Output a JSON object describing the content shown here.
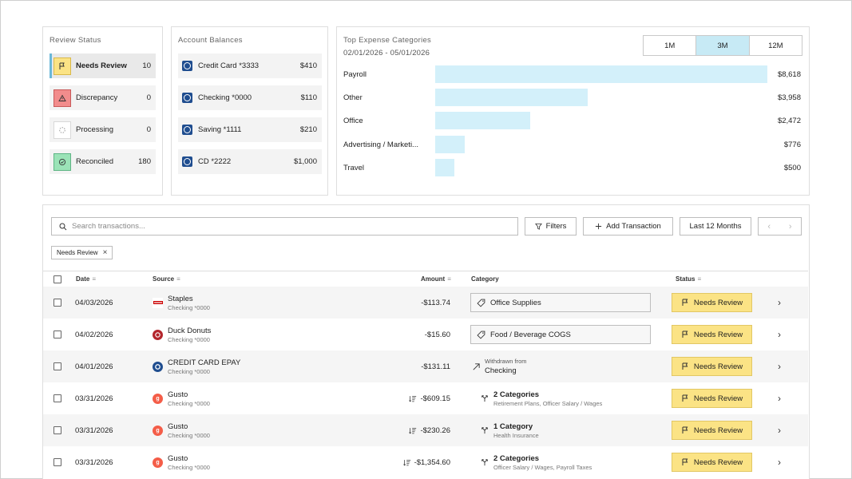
{
  "review_status": {
    "title": "Review Status",
    "items": [
      {
        "label": "Needs Review",
        "count": "10"
      },
      {
        "label": "Discrepancy",
        "count": "0"
      },
      {
        "label": "Processing",
        "count": "0"
      },
      {
        "label": "Reconciled",
        "count": "180"
      }
    ]
  },
  "balances": {
    "title": "Account Balances",
    "items": [
      {
        "label": "Credit Card  *3333",
        "amount": "$410"
      },
      {
        "label": "Checking  *0000",
        "amount": "$110"
      },
      {
        "label": "Saving  *1111",
        "amount": "$210"
      },
      {
        "label": "CD  *2222",
        "amount": "$1,000"
      }
    ]
  },
  "expenses": {
    "title": "Top Expense Categories",
    "date_range": "02/01/2026 - 05/01/2026",
    "ranges": [
      "1M",
      "3M",
      "12M"
    ],
    "active_range": "3M",
    "accent": "#d3f0fa"
  },
  "chart_data": {
    "type": "bar",
    "title": "Top Expense Categories",
    "categories": [
      "Payroll",
      "Other",
      "Office",
      "Advertising / Marketi...",
      "Travel"
    ],
    "values": [
      8618,
      3958,
      2472,
      776,
      500
    ],
    "value_labels": [
      "$8,618",
      "$3,958",
      "$2,472",
      "$776",
      "$500"
    ],
    "orientation": "horizontal"
  },
  "toolbar": {
    "search_placeholder": "Search transactions...",
    "filters_label": "Filters",
    "add_label": "Add Transaction",
    "period_label": "Last 12 Months",
    "active_filter": "Needs Review"
  },
  "table": {
    "headers": {
      "date": "Date",
      "source": "Source",
      "amount": "Amount",
      "category": "Category",
      "status": "Status"
    },
    "rows": [
      {
        "date": "04/03/2026",
        "source": "Staples",
        "account": "Checking *0000",
        "logo": "staples",
        "amount": "-$113.74",
        "split": false,
        "cat_type": "tag",
        "category": "Office Supplies",
        "cat_sub": "",
        "status": "Needs Review"
      },
      {
        "date": "04/02/2026",
        "source": "Duck Donuts",
        "account": "Checking *0000",
        "logo": "donut",
        "amount": "-$15.60",
        "split": false,
        "cat_type": "tag",
        "category": "Food / Beverage COGS",
        "cat_sub": "",
        "status": "Needs Review"
      },
      {
        "date": "04/01/2026",
        "source": "CREDIT CARD EPAY",
        "account": "Checking *0000",
        "logo": "bank",
        "amount": "-$131.11",
        "split": false,
        "cat_type": "transfer",
        "category": "Withdrawn from",
        "cat_sub": "Checking",
        "status": "Needs Review"
      },
      {
        "date": "03/31/2026",
        "source": "Gusto",
        "account": "Checking *0000",
        "logo": "gusto",
        "amount": "-$609.15",
        "split": true,
        "cat_type": "split",
        "category": "2 Categories",
        "cat_sub": "Retirement Plans, Officer Salary / Wages",
        "status": "Needs Review"
      },
      {
        "date": "03/31/2026",
        "source": "Gusto",
        "account": "Checking *0000",
        "logo": "gusto",
        "amount": "-$230.26",
        "split": true,
        "cat_type": "split",
        "category": "1 Category",
        "cat_sub": "Health Insurance",
        "status": "Needs Review"
      },
      {
        "date": "03/31/2026",
        "source": "Gusto",
        "account": "Checking *0000",
        "logo": "gusto",
        "amount": "-$1,354.60",
        "split": true,
        "cat_type": "split",
        "category": "2 Categories",
        "cat_sub": "Officer Salary / Wages, Payroll Taxes",
        "status": "Needs Review"
      }
    ]
  }
}
